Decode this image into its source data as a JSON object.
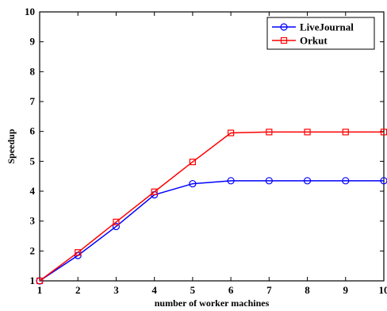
{
  "chart_data": {
    "type": "line",
    "x": [
      1,
      2,
      3,
      4,
      5,
      6,
      7,
      8,
      9,
      10
    ],
    "xlim": [
      1,
      10
    ],
    "ylim": [
      1,
      10
    ],
    "xticks": [
      "1",
      "2",
      "3",
      "4",
      "5",
      "6",
      "7",
      "8",
      "9",
      "10"
    ],
    "yticks": [
      "1",
      "2",
      "3",
      "4",
      "5",
      "6",
      "7",
      "8",
      "9",
      "10"
    ],
    "xlabel": "number of worker machines",
    "ylabel": "Speedup",
    "grid": false,
    "legend_position": "top-right",
    "series": [
      {
        "name": "LiveJournal",
        "color": "#0000ff",
        "marker": "circle",
        "values": [
          1,
          1.85,
          2.82,
          3.88,
          4.25,
          4.35,
          4.35,
          4.35,
          4.35,
          4.35
        ]
      },
      {
        "name": "Orkut",
        "color": "#ff0000",
        "marker": "square",
        "values": [
          1,
          1.95,
          2.97,
          3.98,
          4.98,
          5.95,
          5.98,
          5.98,
          5.98,
          5.98
        ]
      }
    ]
  }
}
